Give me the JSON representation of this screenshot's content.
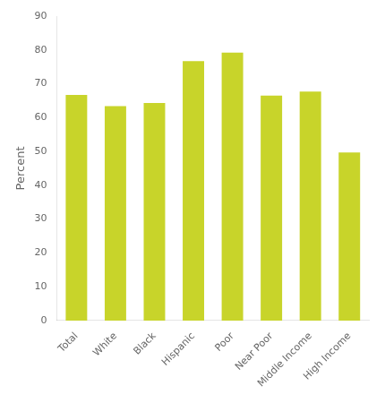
{
  "chart_data": {
    "type": "bar",
    "categories": [
      "Total",
      "White",
      "Black",
      "Hispanic",
      "Poor",
      "Near Poor",
      "Middle Income",
      "High Income"
    ],
    "values": [
      66.7,
      63.4,
      64.3,
      76.7,
      79.2,
      66.5,
      67.7,
      49.7
    ],
    "color": "#c8d42a",
    "ylabel": "Percent",
    "ylim": [
      0,
      90
    ],
    "yticks": [
      0,
      10,
      20,
      30,
      40,
      50,
      60,
      70,
      80,
      90
    ],
    "grid": false
  }
}
